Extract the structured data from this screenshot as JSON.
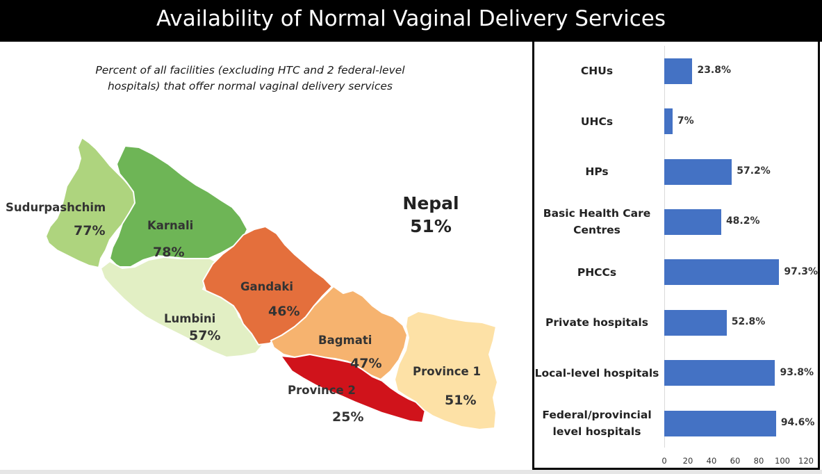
{
  "page": {
    "title": "Availability of Normal Vaginal Delivery Services"
  },
  "map": {
    "subtitle": "Percent of all facilities (excluding HTC and 2 federal-level hospitals) that offer normal vaginal delivery services",
    "national_label": "Nepal",
    "national_value": "51%",
    "provinces": [
      {
        "name": "Sudurpashchim",
        "value": "77%",
        "color": "#aed47e"
      },
      {
        "name": "Karnali",
        "value": "78%",
        "color": "#6eb556"
      },
      {
        "name": "Lumbini",
        "value": "57%",
        "color": "#e2efc4"
      },
      {
        "name": "Gandaki",
        "value": "46%",
        "color": "#e46f3c"
      },
      {
        "name": "Bagmati",
        "value": "47%",
        "color": "#f6b36f"
      },
      {
        "name": "Province 2",
        "value": "25%",
        "color": "#d0131b"
      },
      {
        "name": "Province 1",
        "value": "51%",
        "color": "#fde1a6"
      }
    ]
  },
  "chart_data": {
    "type": "bar",
    "orientation": "horizontal",
    "categories": [
      "CHUs",
      "UHCs",
      "HPs",
      "Basic Health Care Centres",
      "PHCCs",
      "Private hospitals",
      "Local-level hospitals",
      "Federal/provincial level hospitals"
    ],
    "values": [
      23.8,
      7,
      57.2,
      48.2,
      97.3,
      52.8,
      93.8,
      94.6
    ],
    "value_labels": [
      "23.8%",
      "7%",
      "57.2%",
      "48.2%",
      "97.3%",
      "52.8%",
      "93.8%",
      "94.6%"
    ],
    "xlim": [
      0,
      120
    ],
    "xticks": [
      "0",
      "20",
      "40",
      "60",
      "80",
      "100",
      "120"
    ],
    "bar_color": "#4472c4",
    "grid": false
  }
}
